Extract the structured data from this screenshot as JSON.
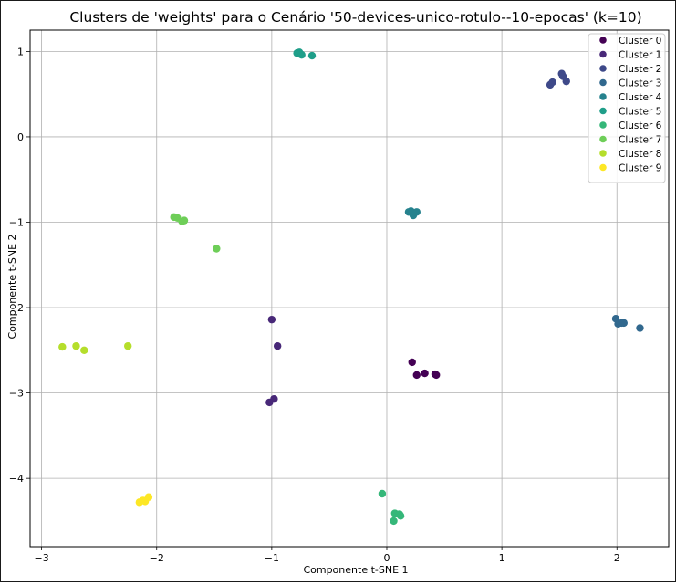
{
  "chart_data": {
    "type": "scatter",
    "title": "Clusters de 'weights' para o Cenário '50-devices-unico-rotulo--10-epocas' (k=10)",
    "xlabel": "Componente t-SNE 1",
    "ylabel": "Componente t-SNE 2",
    "xlim": [
      -3.1,
      2.45
    ],
    "ylim": [
      -4.8,
      1.25
    ],
    "xticks": [
      -3,
      -2,
      -1,
      0,
      1,
      2
    ],
    "yticks": [
      1,
      0,
      -1,
      -2,
      -3,
      -4
    ],
    "grid": true,
    "legend_position": "top-right",
    "series": [
      {
        "name": "Cluster 0",
        "color": "#440154",
        "points": [
          [
            0.22,
            -2.64
          ],
          [
            0.26,
            -2.79
          ],
          [
            0.33,
            -2.77
          ],
          [
            0.42,
            -2.78
          ],
          [
            0.43,
            -2.79
          ]
        ]
      },
      {
        "name": "Cluster 1",
        "color": "#482878",
        "points": [
          [
            -1.0,
            -2.14
          ],
          [
            -0.95,
            -2.45
          ],
          [
            -0.98,
            -3.07
          ],
          [
            -1.02,
            -3.11
          ]
        ]
      },
      {
        "name": "Cluster 2",
        "color": "#3e4989",
        "points": [
          [
            1.42,
            0.61
          ],
          [
            1.44,
            0.64
          ],
          [
            1.52,
            0.74
          ],
          [
            1.53,
            0.71
          ],
          [
            1.56,
            0.65
          ]
        ]
      },
      {
        "name": "Cluster 3",
        "color": "#31688e",
        "points": [
          [
            1.99,
            -2.13
          ],
          [
            2.01,
            -2.19
          ],
          [
            2.04,
            -2.18
          ],
          [
            2.06,
            -2.18
          ],
          [
            2.2,
            -2.24
          ]
        ]
      },
      {
        "name": "Cluster 4",
        "color": "#26828e",
        "points": [
          [
            0.19,
            -0.88
          ],
          [
            0.21,
            -0.87
          ],
          [
            0.23,
            -0.92
          ],
          [
            0.26,
            -0.88
          ]
        ]
      },
      {
        "name": "Cluster 5",
        "color": "#1f9e89",
        "points": [
          [
            -0.78,
            0.98
          ],
          [
            -0.76,
            0.99
          ],
          [
            -0.74,
            0.96
          ],
          [
            -0.65,
            0.95
          ]
        ]
      },
      {
        "name": "Cluster 6",
        "color": "#35b779",
        "points": [
          [
            -0.04,
            -4.18
          ],
          [
            0.07,
            -4.41
          ],
          [
            0.11,
            -4.42
          ],
          [
            0.12,
            -4.44
          ],
          [
            0.06,
            -4.5
          ]
        ]
      },
      {
        "name": "Cluster 7",
        "color": "#6ece58",
        "points": [
          [
            -1.85,
            -0.94
          ],
          [
            -1.82,
            -0.95
          ],
          [
            -1.78,
            -0.99
          ],
          [
            -1.76,
            -0.98
          ],
          [
            -1.48,
            -1.31
          ]
        ]
      },
      {
        "name": "Cluster 8",
        "color": "#b5de2b",
        "points": [
          [
            -2.82,
            -2.46
          ],
          [
            -2.7,
            -2.45
          ],
          [
            -2.63,
            -2.5
          ],
          [
            -2.25,
            -2.45
          ]
        ]
      },
      {
        "name": "Cluster 9",
        "color": "#fde725",
        "points": [
          [
            -2.15,
            -4.28
          ],
          [
            -2.12,
            -4.26
          ],
          [
            -2.1,
            -4.27
          ],
          [
            -2.07,
            -4.22
          ]
        ]
      }
    ]
  }
}
